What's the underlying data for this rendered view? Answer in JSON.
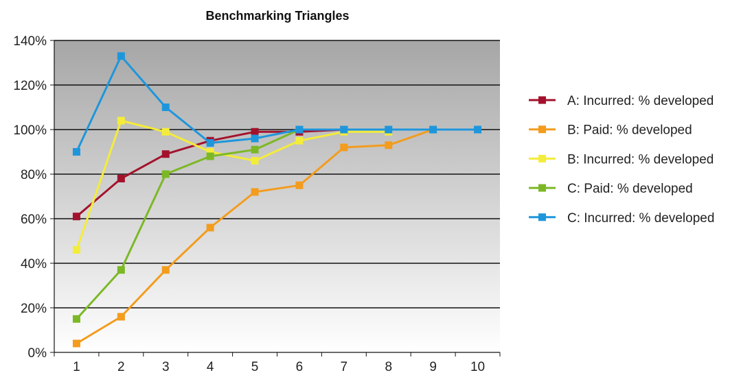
{
  "chart_data": {
    "type": "line",
    "title": "Benchmarking Triangles",
    "xlabel": "",
    "ylabel": "",
    "x": [
      1,
      2,
      3,
      4,
      5,
      6,
      7,
      8,
      9,
      10
    ],
    "x_tick_labels": [
      "1",
      "2",
      "3",
      "4",
      "5",
      "6",
      "7",
      "8",
      "9",
      "10"
    ],
    "ylim": [
      0,
      140
    ],
    "y_ticks": [
      0,
      20,
      40,
      60,
      80,
      100,
      120,
      140
    ],
    "y_tick_labels": [
      "0%",
      "20%",
      "40%",
      "60%",
      "80%",
      "100%",
      "120%",
      "140%"
    ],
    "grid": true,
    "legend_position": "right",
    "series": [
      {
        "name": "A: Incurred: % developed",
        "color": "#a3122c",
        "x": [
          1,
          2,
          3,
          4,
          5,
          6,
          7
        ],
        "values": [
          61,
          78,
          89,
          95,
          99,
          99,
          100
        ]
      },
      {
        "name": "B: Paid: % developed",
        "color": "#f39c1e",
        "x": [
          1,
          2,
          3,
          4,
          5,
          6,
          7,
          8,
          9
        ],
        "values": [
          4,
          16,
          37,
          56,
          72,
          75,
          92,
          93,
          100
        ]
      },
      {
        "name": "B: Incurred: % developed",
        "color": "#f4ec3a",
        "x": [
          1,
          2,
          3,
          4,
          5,
          6,
          7,
          8
        ],
        "values": [
          46,
          104,
          99,
          90,
          86,
          95,
          99,
          99
        ]
      },
      {
        "name": "C: Paid: % developed",
        "color": "#7cb826",
        "x": [
          1,
          2,
          3,
          4,
          5,
          6
        ],
        "values": [
          15,
          37,
          80,
          88,
          91,
          100
        ]
      },
      {
        "name": "C: Incurred: % developed",
        "color": "#1e96dc",
        "x": [
          1,
          2,
          3,
          4,
          5,
          6,
          7,
          8,
          9,
          10
        ],
        "values": [
          90,
          133,
          110,
          94,
          96,
          100,
          100,
          100,
          100,
          100
        ]
      }
    ]
  }
}
